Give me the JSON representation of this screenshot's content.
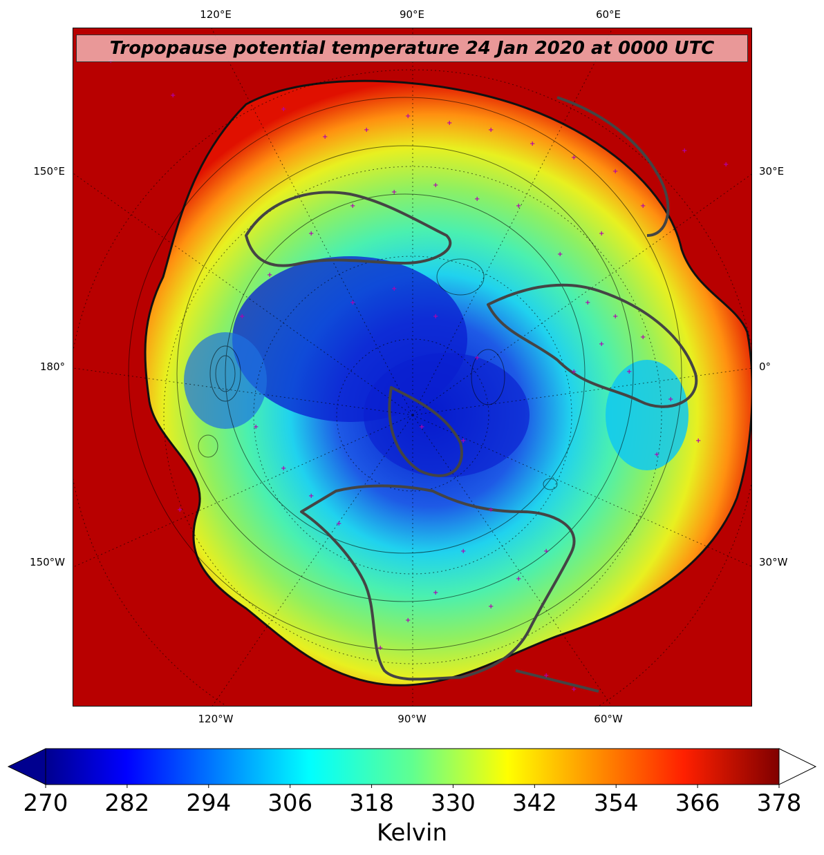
{
  "title": "Tropopause potential temperature 24 Jan 2020 at 0000 UTC",
  "longitude_labels": {
    "top": [
      "120°E",
      "90°E",
      "60°E"
    ],
    "bottom": [
      "120°W",
      "90°W",
      "60°W"
    ],
    "left": [
      "150°E",
      "180°",
      "150°W"
    ],
    "right": [
      "30°E",
      "0°",
      "30°W"
    ]
  },
  "colorbar": {
    "label": "Kelvin",
    "ticks": [
      "270",
      "282",
      "294",
      "306",
      "318",
      "330",
      "342",
      "354",
      "366",
      "378"
    ],
    "min": 270,
    "max": 378,
    "colormap": "jet",
    "extend": "both"
  },
  "projection": "north-polar-stereographic",
  "colors": {
    "coastline": "#444444",
    "station_marker": "#b000b0",
    "title_box": "#f5bebe"
  },
  "markers": "station-plus-markers"
}
